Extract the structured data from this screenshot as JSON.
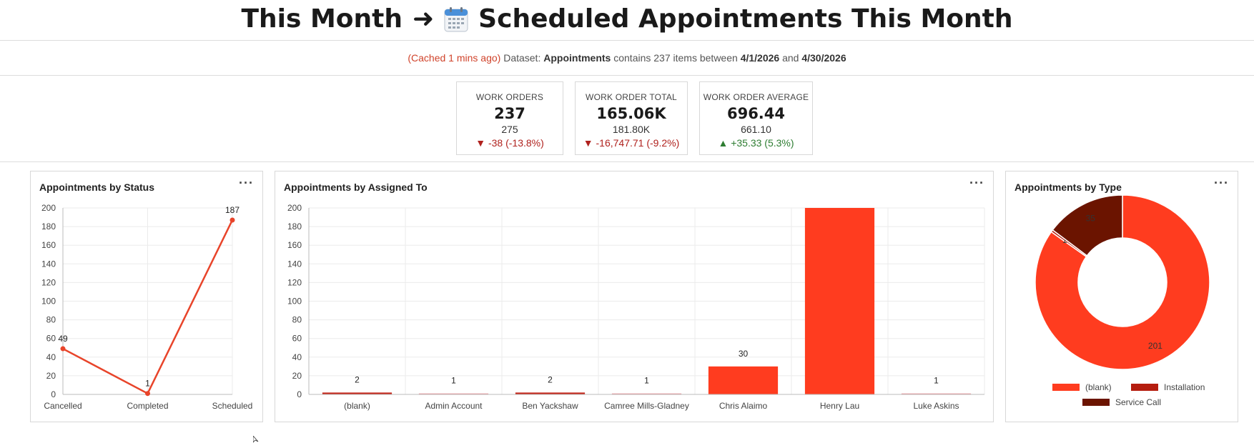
{
  "header": {
    "title_prefix": "This Month",
    "arrow": "➜",
    "title_main": "Scheduled Appointments This Month"
  },
  "info": {
    "cached": "(Cached 1 mins ago)",
    "dataset_label": "Dataset:",
    "dataset_name": "Appointments",
    "contains_text": "contains 237 items between",
    "start_date": "4/1/2026",
    "and_text": "and",
    "end_date": "4/30/2026"
  },
  "kpis": [
    {
      "label": "WORK ORDERS",
      "value": "237",
      "previous": "275",
      "delta": "-38 (-13.8%)",
      "direction": "down"
    },
    {
      "label": "WORK ORDER TOTAL",
      "value": "165.06K",
      "previous": "181.80K",
      "delta": "-16,747.71 (-9.2%)",
      "direction": "down"
    },
    {
      "label": "WORK ORDER AVERAGE",
      "value": "696.44",
      "previous": "661.10",
      "delta": "+35.33 (5.3%)",
      "direction": "up"
    }
  ],
  "panels": {
    "status": {
      "title": "Appointments by Status",
      "menu": "···"
    },
    "assigned": {
      "title": "Appointments by Assigned To",
      "menu": "···"
    },
    "type": {
      "title": "Appointments by Type",
      "menu": "···"
    }
  },
  "colors": {
    "primary": "#ff3c1f",
    "line": "#e8442a",
    "installation": "#b51d0f",
    "service_call": "#6b1400",
    "pink_bar": "#e98f96",
    "dark_bar": "#c2261a",
    "grid": "#ebebeb"
  },
  "chart_data": [
    {
      "id": "status",
      "type": "line",
      "title": "Appointments by Status",
      "categories": [
        "Cancelled",
        "Completed",
        "Scheduled"
      ],
      "values": [
        49,
        1,
        187
      ],
      "ylim": [
        0,
        200
      ],
      "yticks": [
        0,
        20,
        40,
        60,
        80,
        100,
        120,
        140,
        160,
        180,
        200
      ],
      "grid": true
    },
    {
      "id": "assigned",
      "type": "bar",
      "title": "Appointments by Assigned To",
      "categories": [
        "(blank)",
        "Admin Account",
        "Ben Yackshaw",
        "Camree Mills-Gladney",
        "Chris Alaimo",
        "Henry Lau",
        "Luke Askins"
      ],
      "values": [
        2,
        1,
        2,
        1,
        30,
        200,
        1
      ],
      "data_labels": [
        "2",
        "1",
        "2",
        "1",
        "30",
        "",
        "1"
      ],
      "bar_colors": [
        "#c2261a",
        "#e98f96",
        "#c2261a",
        "#e98f96",
        "#ff3c1f",
        "#ff3c1f",
        "#e98f96"
      ],
      "ylim": [
        0,
        200
      ],
      "yticks": [
        0,
        20,
        40,
        60,
        80,
        100,
        120,
        140,
        160,
        180,
        200
      ],
      "grid": true
    },
    {
      "id": "type",
      "type": "pie",
      "title": "Appointments by Type",
      "labels": [
        "(blank)",
        "Installation",
        "Service Call"
      ],
      "values": [
        201,
        1,
        35
      ],
      "data_labels": [
        "201",
        "1",
        "35"
      ],
      "colors": [
        "#ff3c1f",
        "#b51d0f",
        "#6b1400"
      ],
      "legend_position": "bottom"
    }
  ]
}
